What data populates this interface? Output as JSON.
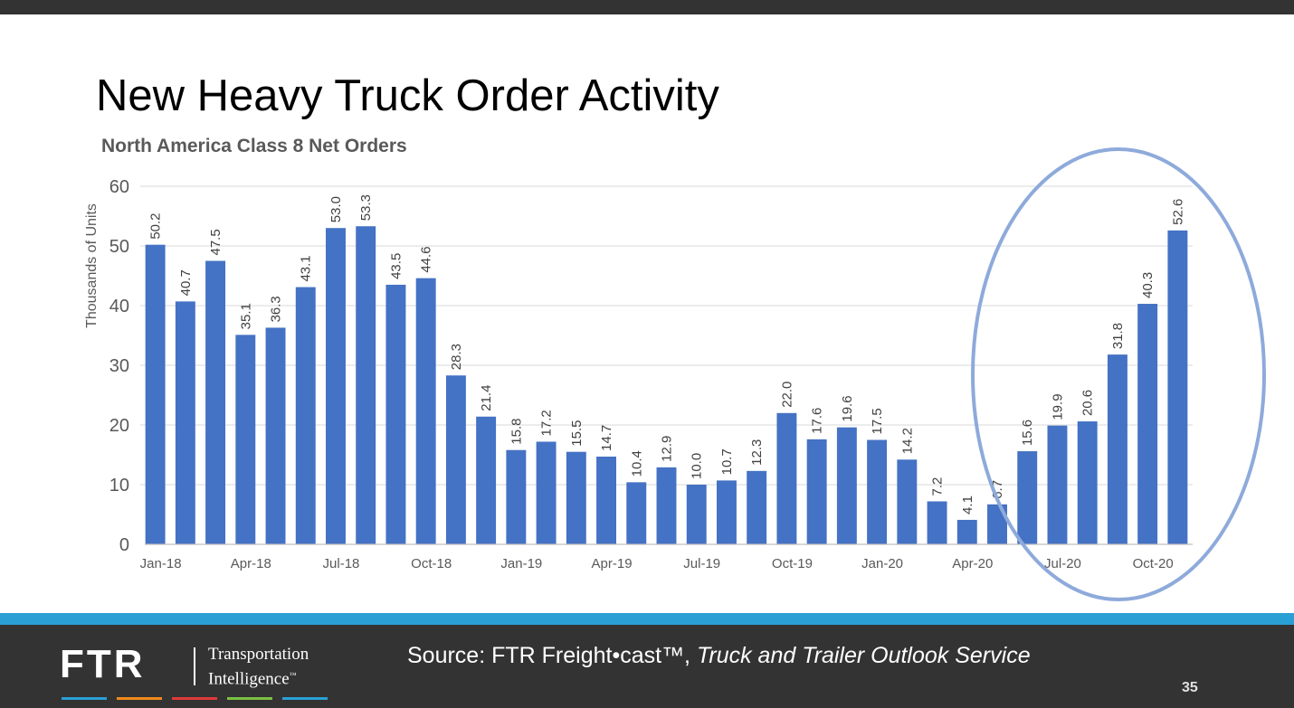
{
  "slide": {
    "title": "New Heavy Truck Order Activity",
    "page_number": "35"
  },
  "footer": {
    "logo_mark": "FTR",
    "logo_line1": "Transportation",
    "logo_line2": "Intelligence",
    "logo_tm": "™",
    "source_prefix": "Source: FTR Freight•cast™, ",
    "source_italic": "Truck and Trailer Outlook Service",
    "stripe_colors": [
      "#2a9fd6",
      "#f08a1c",
      "#e03a3a",
      "#7ac143",
      "#2a9fd6"
    ]
  },
  "colors": {
    "bar": "#4472c4",
    "highlight_ellipse": "#8eaadb",
    "grid": "#d9d9d9",
    "axis_text": "#595959",
    "top_bar": "#333333",
    "footer": "#333333",
    "footer_line": "#2a9fd6"
  },
  "chart_data": {
    "type": "bar",
    "title": "North America Class 8 Net Orders",
    "ylabel": "Thousands of Units",
    "xlabel": "",
    "ylim": [
      0,
      60
    ],
    "yticks": [
      0,
      10,
      20,
      30,
      40,
      50,
      60
    ],
    "grid": true,
    "categories": [
      "Jan-18",
      "Feb-18",
      "Mar-18",
      "Apr-18",
      "May-18",
      "Jun-18",
      "Jul-18",
      "Aug-18",
      "Sep-18",
      "Oct-18",
      "Nov-18",
      "Dec-18",
      "Jan-19",
      "Feb-19",
      "Mar-19",
      "Apr-19",
      "May-19",
      "Jun-19",
      "Jul-19",
      "Aug-19",
      "Sep-19",
      "Oct-19",
      "Nov-19",
      "Dec-19",
      "Jan-20",
      "Feb-20",
      "Mar-20",
      "Apr-20",
      "May-20",
      "Jun-20",
      "Jul-20",
      "Aug-20",
      "Sep-20",
      "Oct-20",
      "Nov-20"
    ],
    "tick_labels": [
      "Jan-18",
      "Apr-18",
      "Jul-18",
      "Oct-18",
      "Jan-19",
      "Apr-19",
      "Jul-19",
      "Oct-19",
      "Jan-20",
      "Apr-20",
      "Jul-20",
      "Oct-20"
    ],
    "values": [
      50.2,
      40.7,
      47.5,
      35.1,
      36.3,
      43.1,
      53.0,
      53.3,
      43.5,
      44.6,
      28.3,
      21.4,
      15.8,
      17.2,
      15.5,
      14.7,
      10.4,
      12.9,
      10.0,
      10.7,
      12.3,
      22.0,
      17.6,
      19.6,
      17.5,
      14.2,
      7.2,
      4.1,
      6.7,
      15.6,
      19.9,
      20.6,
      31.8,
      40.3,
      52.6
    ],
    "data_labels": [
      "50.2",
      "40.7",
      "47.5",
      "35.1",
      "36.3",
      "43.1",
      "53.0",
      "53.3",
      "43.5",
      "44.6",
      "28.3",
      "21.4",
      "15.8",
      "17.2",
      "15.5",
      "14.7",
      "10.4",
      "12.9",
      "10.0",
      "10.7",
      "12.3",
      "22.0",
      "17.6",
      "19.6",
      "17.5",
      "14.2",
      "7.2",
      "4.1",
      "6.7",
      "15.6",
      "19.9",
      "20.6",
      "31.8",
      "40.3",
      "52.6"
    ],
    "annotations": [
      "ellipse highlighting Jun-20 through Nov-20"
    ]
  }
}
